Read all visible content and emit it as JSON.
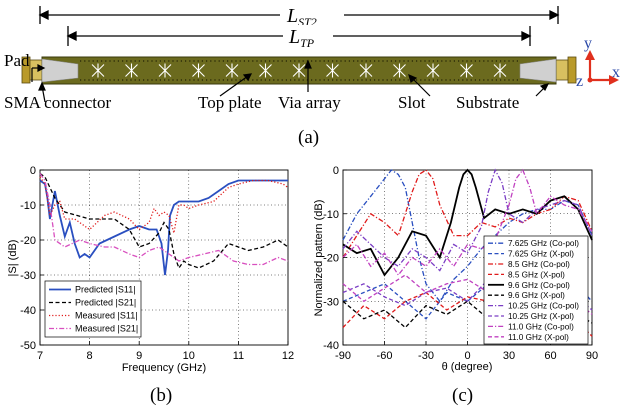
{
  "panel_a": {
    "label_lst2": "L",
    "label_lst2_sub": "ST2",
    "label_ltp": "L",
    "label_ltp_sub": "TP",
    "callouts": {
      "pad": "Pad",
      "sma": "SMA connector",
      "top_plate": "Top plate",
      "via_array": "Via array",
      "slot": "Slot",
      "substrate": "Substrate"
    },
    "axes": {
      "y": "y",
      "x": "x",
      "z": "z"
    },
    "colors": {
      "substrate": "#6b6a1e",
      "connector": "#c9c9c9",
      "axes": "#e0301e",
      "axis_label": "#2b49a8"
    }
  },
  "captions": {
    "a": "(a)",
    "b": "(b)",
    "c": "(c)"
  },
  "chart_data": [
    {
      "type": "line",
      "panel": "b",
      "xlabel": "Frequency (GHz)",
      "ylabel": "|S| (dB)",
      "xlim": [
        7,
        12
      ],
      "ylim": [
        -50,
        0
      ],
      "xticks": [
        "7",
        "8",
        "9",
        "10",
        "11",
        "12"
      ],
      "yticks": [
        "0",
        "-10",
        "-20",
        "-30",
        "-40",
        "-50"
      ],
      "legend_position": "bottom-left",
      "series": [
        {
          "name": "Predicted |S11|",
          "color": "#2a4fc0",
          "dash": "solid",
          "x": [
            7.0,
            7.1,
            7.15,
            7.2,
            7.3,
            7.4,
            7.5,
            7.6,
            7.7,
            7.8,
            7.9,
            8.0,
            8.2,
            8.5,
            8.8,
            9.0,
            9.2,
            9.35,
            9.45,
            9.52,
            9.58,
            9.62,
            9.7,
            9.8,
            10.0,
            10.2,
            10.4,
            10.6,
            10.8,
            11.0,
            11.2,
            11.5,
            11.8,
            12.0
          ],
          "y": [
            -3,
            -4,
            -8,
            -14,
            -6,
            -13,
            -19,
            -15,
            -21,
            -25,
            -24,
            -25,
            -21,
            -19,
            -17,
            -16,
            -17,
            -17,
            -21,
            -30,
            -23,
            -13,
            -10,
            -9,
            -9,
            -9,
            -8,
            -6,
            -4,
            -3,
            -3,
            -3,
            -3,
            -3
          ]
        },
        {
          "name": "Predicted |S21|",
          "color": "#000000",
          "dash": "dashed",
          "x": [
            7.0,
            7.1,
            7.2,
            7.3,
            7.5,
            8.0,
            8.5,
            8.8,
            9.0,
            9.2,
            9.4,
            9.5,
            9.6,
            9.7,
            9.8,
            9.9,
            10.0,
            10.2,
            10.5,
            10.8,
            11.0,
            11.2,
            11.5,
            11.8,
            12.0
          ],
          "y": [
            -1,
            -2,
            -5,
            -8,
            -12,
            -14,
            -14,
            -17,
            -22,
            -21,
            -18,
            -15,
            -17,
            -24,
            -28,
            -26,
            -27,
            -28,
            -26,
            -21,
            -22,
            -23,
            -22,
            -20,
            -22
          ]
        },
        {
          "name": "Measured |S11|",
          "color": "#e01a1a",
          "dash": "dotted",
          "x": [
            7.0,
            7.1,
            7.2,
            7.3,
            7.4,
            7.5,
            7.7,
            8.0,
            8.3,
            8.5,
            8.8,
            9.0,
            9.2,
            9.3,
            9.4,
            9.5,
            9.6,
            9.7,
            9.8,
            9.9,
            10.0,
            10.2,
            10.5,
            10.8,
            11.0,
            11.3,
            11.6,
            11.9,
            12.0
          ],
          "y": [
            -2,
            -4,
            -13,
            -10,
            -9,
            -14,
            -14,
            -17,
            -13,
            -12,
            -14,
            -17,
            -15,
            -11,
            -13,
            -12,
            -13,
            -18,
            -10,
            -10,
            -11,
            -10,
            -9,
            -5,
            -4,
            -3,
            -3,
            -4,
            -5
          ]
        },
        {
          "name": "Measured |S21|",
          "color": "#d84fbf",
          "dash": "dashdot",
          "x": [
            7.0,
            7.1,
            7.2,
            7.3,
            7.5,
            7.8,
            8.0,
            8.3,
            8.5,
            8.8,
            9.0,
            9.2,
            9.4,
            9.6,
            9.8,
            10.0,
            10.3,
            10.6,
            10.9,
            11.2,
            11.5,
            11.8,
            12.0
          ],
          "y": [
            -1,
            -3,
            -10,
            -20,
            -22,
            -20,
            -21,
            -22,
            -22,
            -24,
            -25,
            -23,
            -22,
            -24,
            -26,
            -25,
            -24,
            -23,
            -26,
            -27,
            -27,
            -25,
            -26
          ]
        }
      ]
    },
    {
      "type": "line",
      "panel": "c",
      "xlabel": "θ (degree)",
      "ylabel": "Normalized pattern (dB)",
      "xlim": [
        -90,
        90
      ],
      "ylim": [
        -40,
        0
      ],
      "xticks": [
        "-90",
        "-60",
        "-30",
        "0",
        "30",
        "60",
        "90"
      ],
      "yticks": [
        "0",
        "-10",
        "-20",
        "-30",
        "-40"
      ],
      "legend_position": "bottom-right",
      "series": [
        {
          "name": "7.625 GHz (Co-pol)",
          "color": "#2a4fc0",
          "dash": "dashdot",
          "x": [
            -90,
            -80,
            -70,
            -60,
            -55,
            -50,
            -45,
            -40,
            -35,
            -30,
            -20,
            -10,
            0,
            10,
            20,
            30,
            40,
            50,
            60,
            70,
            80,
            90
          ],
          "y": [
            -16,
            -10,
            -6,
            -2,
            0,
            -1,
            -4,
            -12,
            -20,
            -26,
            -30,
            -25,
            -22,
            -18,
            -15,
            -12,
            -10,
            -9,
            -9,
            -7,
            -8,
            -15
          ]
        },
        {
          "name": "7.625 GHz (X-pol)",
          "color": "#2a4fc0",
          "dash": "dashed",
          "x": [
            -90,
            -75,
            -60,
            -45,
            -30,
            -15,
            0,
            15,
            30,
            45,
            60,
            75,
            90
          ],
          "y": [
            -30,
            -28,
            -26,
            -30,
            -34,
            -28,
            -30,
            -26,
            -24,
            -27,
            -28,
            -25,
            -30
          ]
        },
        {
          "name": "8.5 GHz (Co-pol)",
          "color": "#e01a1a",
          "dash": "dashdot",
          "x": [
            -90,
            -80,
            -70,
            -60,
            -50,
            -45,
            -40,
            -35,
            -30,
            -25,
            -20,
            -10,
            0,
            10,
            20,
            30,
            40,
            50,
            60,
            70,
            80,
            90
          ],
          "y": [
            -20,
            -15,
            -10,
            -12,
            -15,
            -10,
            -5,
            -1,
            0,
            -2,
            -8,
            -15,
            -15,
            -12,
            -13,
            -11,
            -12,
            -10,
            -9,
            -6,
            -7,
            -14
          ]
        },
        {
          "name": "8.5 GHz (X-pol)",
          "color": "#e01a1a",
          "dash": "dashed",
          "x": [
            -90,
            -75,
            -60,
            -45,
            -30,
            -15,
            0,
            15,
            30,
            45,
            60,
            75,
            90
          ],
          "y": [
            -36,
            -31,
            -34,
            -30,
            -28,
            -32,
            -29,
            -30,
            -34,
            -30,
            -28,
            -33,
            -38
          ]
        },
        {
          "name": "9.6 GHz (Co-pol)",
          "color": "#000000",
          "dash": "solid",
          "x": [
            -90,
            -80,
            -70,
            -60,
            -50,
            -40,
            -30,
            -20,
            -12,
            -6,
            -3,
            0,
            3,
            6,
            12,
            20,
            30,
            40,
            50,
            60,
            70,
            80,
            90
          ],
          "y": [
            -17,
            -19,
            -18,
            -24,
            -20,
            -14,
            -15,
            -20,
            -12,
            -4,
            -1,
            0,
            -1,
            -4,
            -11,
            -9,
            -10,
            -9,
            -10,
            -7,
            -6,
            -9,
            -16
          ]
        },
        {
          "name": "9.6 GHz (X-pol)",
          "color": "#000000",
          "dash": "dashed",
          "x": [
            -90,
            -75,
            -60,
            -45,
            -30,
            -15,
            0,
            15,
            30,
            45,
            60,
            75,
            90
          ],
          "y": [
            -30,
            -34,
            -32,
            -36,
            -31,
            -33,
            -30,
            -34,
            -31,
            -28,
            -30,
            -32,
            -35
          ]
        },
        {
          "name": "10.25 GHz (Co-pol)",
          "color": "#7a3dc4",
          "dash": "dashdot",
          "x": [
            -90,
            -80,
            -70,
            -60,
            -50,
            -40,
            -30,
            -20,
            -10,
            0,
            10,
            15,
            20,
            25,
            30,
            40,
            50,
            60,
            70,
            80,
            90
          ],
          "y": [
            -18,
            -14,
            -17,
            -20,
            -22,
            -18,
            -20,
            -23,
            -17,
            -19,
            -13,
            -5,
            0,
            -3,
            -10,
            -12,
            -9,
            -8,
            -7,
            -8,
            -15
          ]
        },
        {
          "name": "10.25 GHz (X-pol)",
          "color": "#7a3dc4",
          "dash": "dashed",
          "x": [
            -90,
            -75,
            -60,
            -45,
            -30,
            -15,
            0,
            15,
            30,
            45,
            60,
            75,
            90
          ],
          "y": [
            -28,
            -26,
            -29,
            -31,
            -28,
            -27,
            -30,
            -25,
            -28,
            -27,
            -24,
            -28,
            -32
          ]
        },
        {
          "name": "11.0 GHz (Co-pol)",
          "color": "#c040c0",
          "dash": "dashdot",
          "x": [
            -90,
            -80,
            -70,
            -60,
            -50,
            -40,
            -30,
            -20,
            -10,
            0,
            10,
            20,
            30,
            35,
            40,
            45,
            50,
            60,
            70,
            80,
            90
          ],
          "y": [
            -20,
            -17,
            -22,
            -19,
            -24,
            -20,
            -22,
            -18,
            -22,
            -17,
            -18,
            -16,
            -8,
            -2,
            0,
            -4,
            -10,
            -6,
            -8,
            -9,
            -14
          ]
        },
        {
          "name": "11.0 GHz (X-pol)",
          "color": "#c040c0",
          "dash": "dashed",
          "x": [
            -90,
            -75,
            -60,
            -45,
            -30,
            -15,
            0,
            15,
            30,
            45,
            60,
            75,
            90
          ],
          "y": [
            -26,
            -30,
            -27,
            -24,
            -28,
            -26,
            -25,
            -28,
            -24,
            -27,
            -25,
            -29,
            -33
          ]
        }
      ]
    }
  ]
}
